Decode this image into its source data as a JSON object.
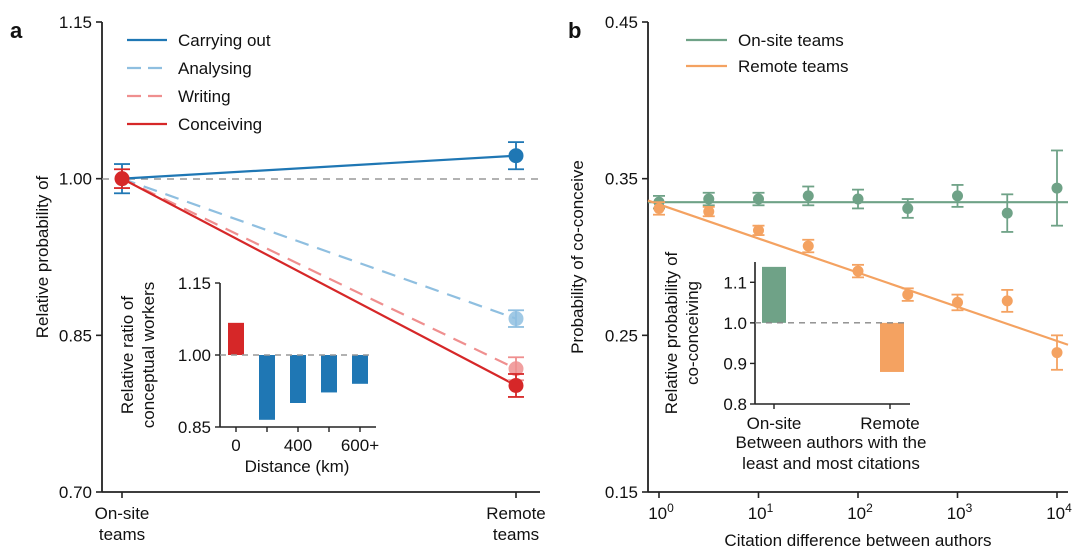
{
  "chart_data": [
    {
      "panel": "a",
      "type": "line",
      "ylabel": "Relative probability of",
      "categories": [
        "On-site teams",
        "Remote teams"
      ],
      "category_lines": [
        [
          "On-site",
          "teams"
        ],
        [
          "Remote",
          "teams"
        ]
      ],
      "yticks": [
        "1.15",
        "1.00",
        "0.85",
        "0.70"
      ],
      "ylim": [
        0.7,
        1.15
      ],
      "reference_line": 1.0,
      "legend_position": "top-left",
      "series": [
        {
          "name": "Carrying out",
          "color": "#1f77b4",
          "dash": false,
          "faded": false,
          "values": [
            1.0,
            1.022
          ],
          "err": [
            0.014,
            0.013
          ]
        },
        {
          "name": "Analysing",
          "color": "#8fbfe0",
          "dash": true,
          "faded": true,
          "values": [
            1.0,
            0.866
          ],
          "err": [
            0.0,
            0.008
          ]
        },
        {
          "name": "Writing",
          "color": "#ef8f8f",
          "dash": true,
          "faded": true,
          "values": [
            1.0,
            0.818
          ],
          "err": [
            0.0,
            0.011
          ]
        },
        {
          "name": "Conceiving",
          "color": "#d62728",
          "dash": false,
          "faded": false,
          "values": [
            1.0,
            0.802
          ],
          "err": [
            0.009,
            0.011
          ]
        }
      ],
      "inset": {
        "type": "bar",
        "ylabel_lines": [
          "Relative ratio of",
          "conceptual workers"
        ],
        "xlabel": "Distance (km)",
        "xtick_labels": [
          "0",
          "400",
          "600+"
        ],
        "yticks": [
          "1.15",
          "1.00",
          "0.85"
        ],
        "ylim": [
          0.85,
          1.15
        ],
        "baseline": 1.0,
        "values": [
          1.067,
          0.865,
          0.9,
          0.922,
          0.94
        ],
        "colors": [
          "#d62728",
          "#1f77b4",
          "#1f77b4",
          "#1f77b4",
          "#1f77b4"
        ]
      }
    },
    {
      "panel": "b",
      "type": "scatter",
      "ylabel": "Probability of co-conceive",
      "xlabel": "Citation difference between authors",
      "xscale": "log",
      "xticks": [
        {
          "base": "10",
          "exp": "0"
        },
        {
          "base": "10",
          "exp": "1"
        },
        {
          "base": "10",
          "exp": "2"
        },
        {
          "base": "10",
          "exp": "3"
        },
        {
          "base": "10",
          "exp": "4"
        }
      ],
      "xlim_log10": [
        0,
        4
      ],
      "yticks": [
        "0.45",
        "0.35",
        "0.25",
        "0.15"
      ],
      "ylim": [
        0.15,
        0.45
      ],
      "legend_position": "top-left",
      "x_log10": [
        0,
        0.5,
        1,
        1.5,
        2,
        2.5,
        3,
        3.5,
        4
      ],
      "series": [
        {
          "name": "On-site teams",
          "color": "#6fa287",
          "values": [
            0.335,
            0.337,
            0.337,
            0.339,
            0.337,
            0.331,
            0.339,
            0.328,
            0.344
          ],
          "err": [
            0.004,
            0.004,
            0.004,
            0.006,
            0.006,
            0.006,
            0.007,
            0.012,
            0.024
          ],
          "fit": [
            0.335,
            0.335
          ]
        },
        {
          "name": "Remote teams",
          "color": "#f4a261",
          "values": [
            0.331,
            0.329,
            0.317,
            0.307,
            0.291,
            0.276,
            0.271,
            0.272,
            0.239
          ],
          "err": [
            0.004,
            0.003,
            0.003,
            0.004,
            0.004,
            0.004,
            0.005,
            0.007,
            0.011
          ],
          "fit": [
            0.336,
            0.244
          ]
        }
      ],
      "inset": {
        "type": "bar",
        "ylabel_lines": [
          "Relative probability of",
          "co-conceiving"
        ],
        "xlabel_lines": [
          "Between authors with the",
          "least and most citations"
        ],
        "categories": [
          "On-site",
          "Remote"
        ],
        "yticks": [
          "1.1",
          "1.0",
          "0.9",
          "0.8"
        ],
        "ylim": [
          0.8,
          1.15
        ],
        "baseline": 1.0,
        "values": [
          1.138,
          0.879
        ],
        "colors": [
          "#6fa287",
          "#f4a261"
        ]
      }
    }
  ],
  "panel_labels": [
    "a",
    "b"
  ]
}
